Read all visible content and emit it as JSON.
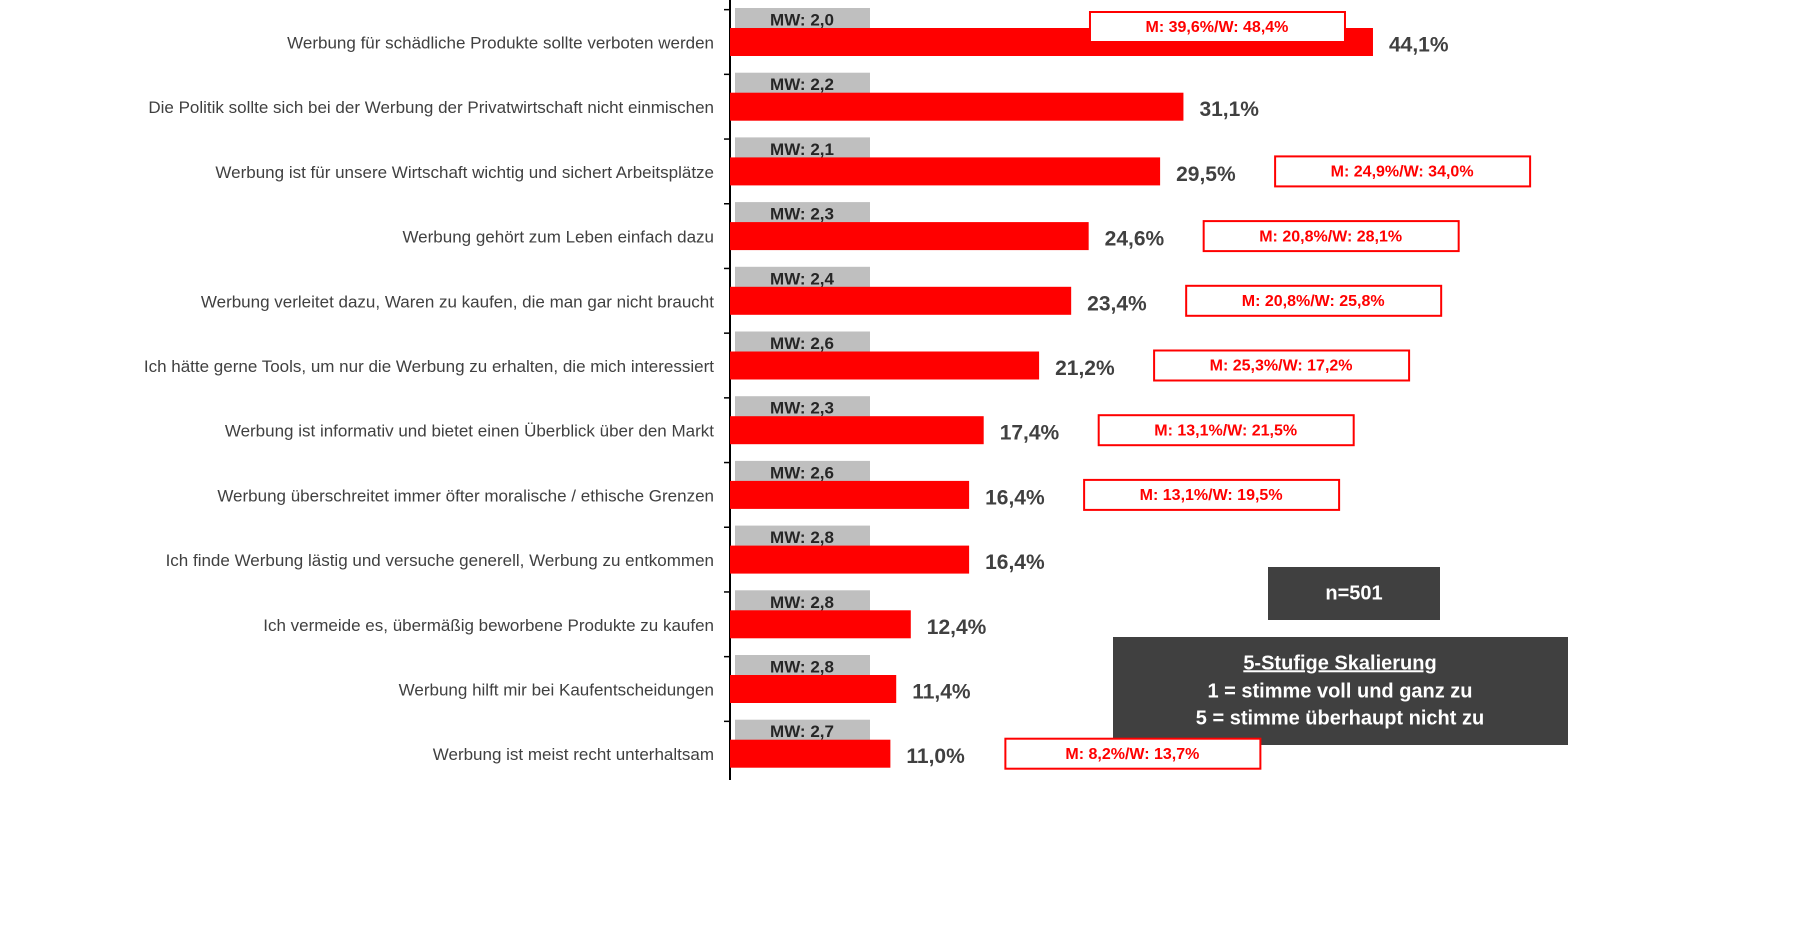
{
  "chart_data": {
    "type": "bar",
    "orientation": "horizontal",
    "color": "#ff0000",
    "categories": [
      "Werbung für schädliche Produkte sollte verboten werden",
      "Die Politik sollte sich bei der Werbung der Privatwirtschaft nicht einmischen",
      "Werbung ist für unsere Wirtschaft wichtig und sichert Arbeitsplätze",
      "Werbung gehört zum Leben einfach dazu",
      "Werbung verleitet dazu, Waren zu kaufen, die man gar nicht braucht",
      "Ich hätte gerne Tools, um nur die Werbung zu erhalten, die mich interessiert",
      "Werbung ist informativ und bietet einen Überblick über den Markt",
      "Werbung überschreitet immer öfter moralische / ethische Grenzen",
      "Ich finde Werbung lästig und versuche generell, Werbung zu entkommen",
      "Ich vermeide es, übermäßig beworbene Produkte zu kaufen",
      "Werbung hilft mir bei Kaufentscheidungen",
      "Werbung ist meist recht unterhaltsam"
    ],
    "values": [
      44.1,
      31.1,
      29.5,
      24.6,
      23.4,
      21.2,
      17.4,
      16.4,
      16.4,
      12.4,
      11.4,
      11.0
    ],
    "value_labels": [
      "44,1%",
      "31,1%",
      "29,5%",
      "24,6%",
      "23,4%",
      "21,2%",
      "17,4%",
      "16,4%",
      "16,4%",
      "12,4%",
      "11,4%",
      "11,0%"
    ],
    "mean_labels": [
      "MW: 2,0",
      "MW: 2,2",
      "MW: 2,1",
      "MW: 2,3",
      "MW: 2,4",
      "MW: 2,6",
      "MW: 2,3",
      "MW: 2,6",
      "MW: 2,8",
      "MW: 2,8",
      "MW: 2,8",
      "MW: 2,7"
    ],
    "gender_labels": [
      "M: 39,6%/W: 48,4%",
      null,
      "M: 24,9%/W: 34,0%",
      "M: 20,8%/W: 28,1%",
      "M: 20,8%/W: 25,8%",
      "M: 25,3%/W: 17,2%",
      "M: 13,1%/W: 21,5%",
      "M: 13,1%/W: 19,5%",
      null,
      null,
      null,
      "M: 8,2%/W: 13,7%"
    ],
    "sample_note": "n=501",
    "scale_note": {
      "title": "5-Stufige Skalierung",
      "lines": [
        "1 = stimme voll und ganz zu",
        "5 = stimme überhaupt nicht zu"
      ]
    }
  }
}
